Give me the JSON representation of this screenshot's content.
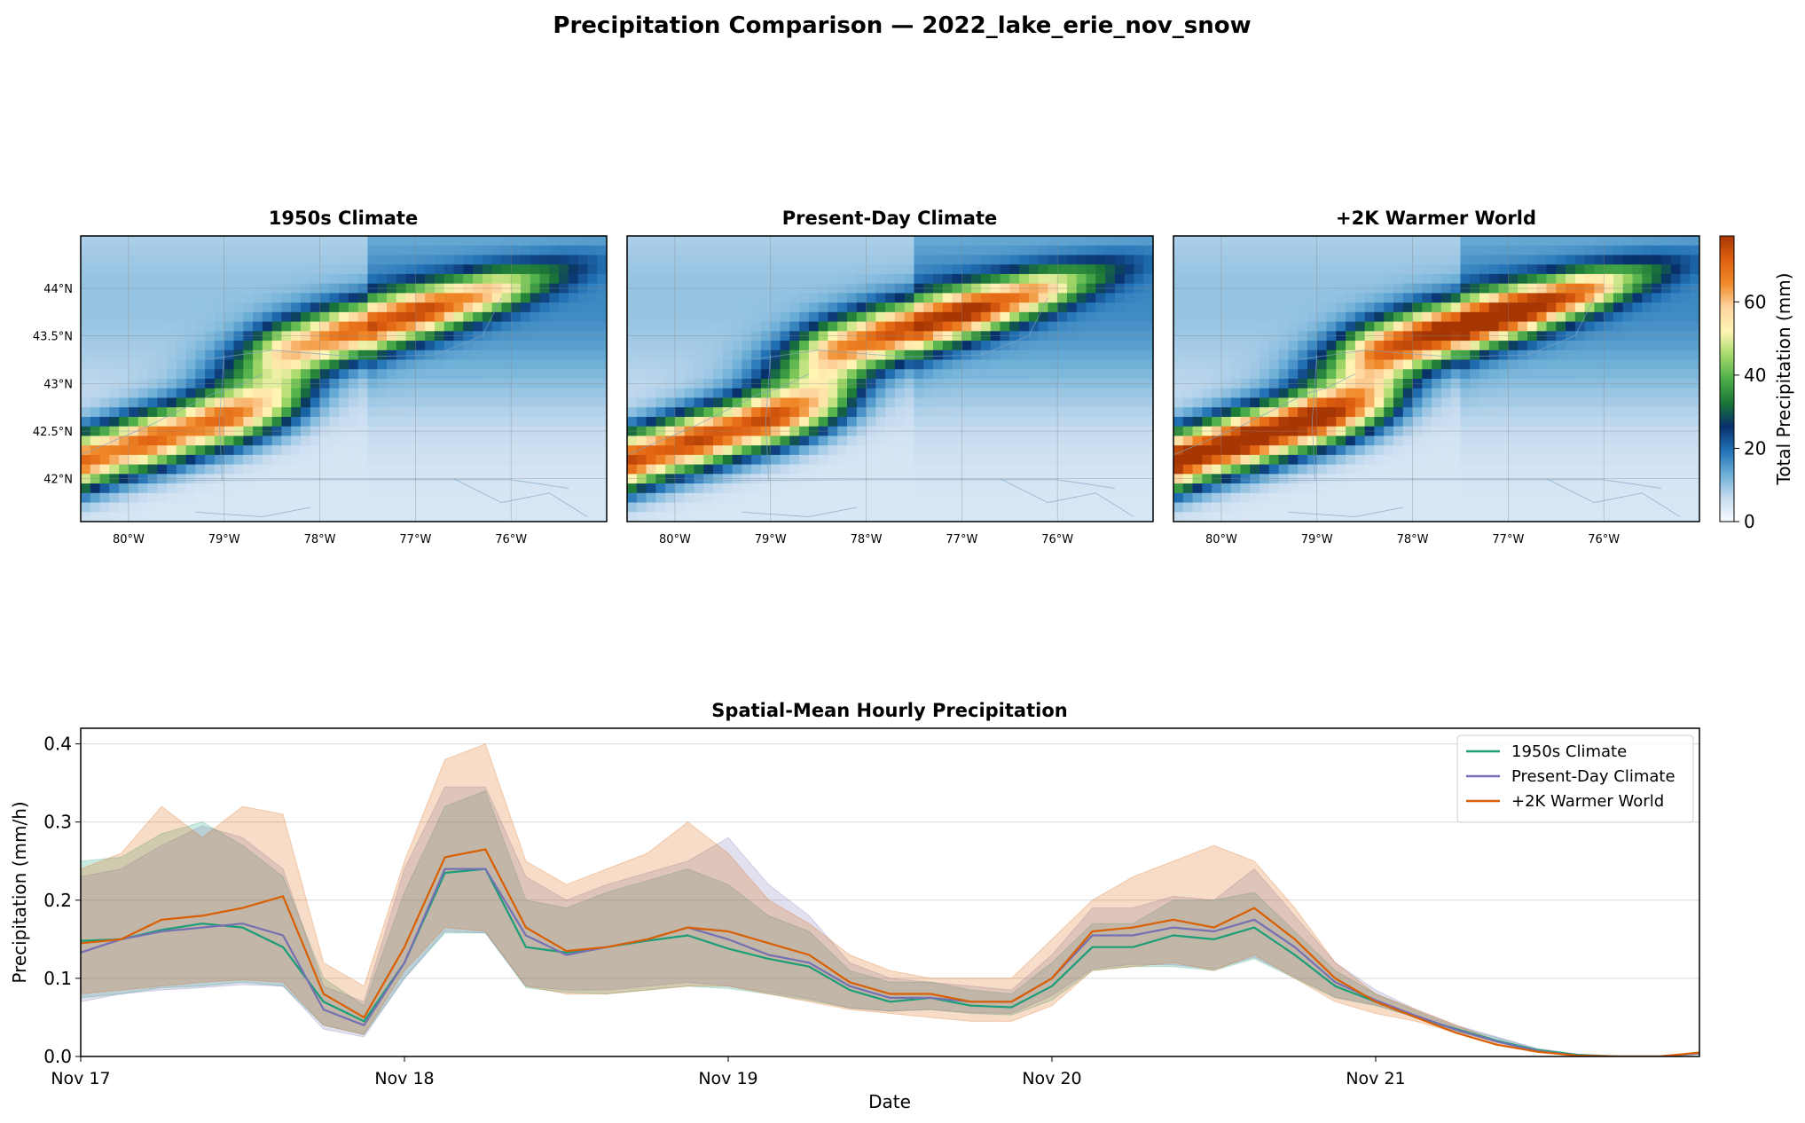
{
  "figure": {
    "title": "Precipitation Comparison — 2022_lake_erie_nov_snow"
  },
  "maps": {
    "panels": [
      {
        "title": "1950s Climate",
        "intensity": 1.0
      },
      {
        "title": "Present-Day Climate",
        "intensity": 1.08
      },
      {
        "title": "+2K Warmer World",
        "intensity": 1.22
      }
    ],
    "lon_ticks": [
      "80°W",
      "79°W",
      "78°W",
      "77°W",
      "76°W"
    ],
    "lat_ticks": [
      "44°N",
      "43.5°N",
      "43°N",
      "42.5°N",
      "42°N"
    ],
    "extent": {
      "lon_min": -80.5,
      "lon_max": -75.0,
      "lat_min": 41.55,
      "lat_max": 44.55
    },
    "colorbar": {
      "label": "Total Precipitation (mm)",
      "ticks": [
        "0",
        "20",
        "40",
        "60"
      ],
      "vmin": 0,
      "vmax": 78,
      "stops": [
        "#f7fbff",
        "#c6dbef",
        "#6baed6",
        "#2171b5",
        "#08306b",
        "#1b7837",
        "#4daf4a",
        "#a6d96a",
        "#fff5b4",
        "#fdd49e",
        "#f08a2a",
        "#e06010",
        "#a63603"
      ]
    }
  },
  "chart_data": {
    "type": "line",
    "title": "Spatial-Mean Hourly Precipitation",
    "xlabel": "Date",
    "ylabel": "Precipitation (mm/h)",
    "x_tick_labels": [
      "Nov 17",
      "Nov 18",
      "Nov 19",
      "Nov 20",
      "Nov 21"
    ],
    "y_tick_labels": [
      "0.0",
      "0.1",
      "0.2",
      "0.3",
      "0.4"
    ],
    "xlim": [
      0,
      120
    ],
    "ylim": [
      0,
      0.42
    ],
    "legend_position": "top-right",
    "x_hours": [
      0,
      3,
      6,
      9,
      12,
      15,
      18,
      21,
      24,
      27,
      30,
      33,
      36,
      39,
      42,
      45,
      48,
      51,
      54,
      57,
      60,
      63,
      66,
      69,
      72,
      75,
      78,
      81,
      84,
      87,
      90,
      93,
      96,
      99,
      102,
      105,
      108,
      111,
      114,
      117,
      120
    ],
    "series": [
      {
        "name": "1950s Climate",
        "color": "#1b9e77",
        "values": [
          0.148,
          0.15,
          0.162,
          0.17,
          0.165,
          0.14,
          0.07,
          0.045,
          0.12,
          0.235,
          0.24,
          0.14,
          0.133,
          0.14,
          0.148,
          0.155,
          0.138,
          0.125,
          0.115,
          0.085,
          0.07,
          0.075,
          0.065,
          0.063,
          0.09,
          0.14,
          0.14,
          0.155,
          0.15,
          0.165,
          0.13,
          0.09,
          0.07,
          0.05,
          0.035,
          0.02,
          0.008,
          0.002,
          0.0,
          0.0,
          0.004
        ],
        "lower": [
          0.075,
          0.08,
          0.088,
          0.09,
          0.095,
          0.09,
          0.04,
          0.028,
          0.1,
          0.158,
          0.158,
          0.088,
          0.082,
          0.08,
          0.085,
          0.09,
          0.087,
          0.08,
          0.072,
          0.062,
          0.058,
          0.06,
          0.055,
          0.053,
          0.072,
          0.11,
          0.115,
          0.115,
          0.11,
          0.125,
          0.1,
          0.075,
          0.065,
          0.05,
          0.032,
          0.018,
          0.006,
          0.001,
          0.0,
          0.0,
          0.003
        ],
        "upper": [
          0.25,
          0.255,
          0.285,
          0.3,
          0.27,
          0.23,
          0.1,
          0.065,
          0.21,
          0.32,
          0.34,
          0.2,
          0.19,
          0.21,
          0.225,
          0.24,
          0.22,
          0.18,
          0.16,
          0.11,
          0.095,
          0.095,
          0.085,
          0.08,
          0.12,
          0.17,
          0.17,
          0.2,
          0.2,
          0.21,
          0.16,
          0.11,
          0.08,
          0.058,
          0.038,
          0.024,
          0.01,
          0.003,
          0.0,
          0.0,
          0.005
        ]
      },
      {
        "name": "Present-Day Climate",
        "color": "#7570b3",
        "values": [
          0.133,
          0.15,
          0.16,
          0.165,
          0.17,
          0.155,
          0.06,
          0.04,
          0.12,
          0.24,
          0.24,
          0.155,
          0.13,
          0.14,
          0.15,
          0.165,
          0.15,
          0.13,
          0.12,
          0.09,
          0.075,
          0.075,
          0.07,
          0.07,
          0.1,
          0.155,
          0.155,
          0.165,
          0.16,
          0.175,
          0.14,
          0.095,
          0.072,
          0.052,
          0.034,
          0.019,
          0.007,
          0.001,
          0.0,
          0.0,
          0.004
        ],
        "lower": [
          0.07,
          0.08,
          0.085,
          0.088,
          0.092,
          0.09,
          0.035,
          0.025,
          0.1,
          0.16,
          0.158,
          0.09,
          0.085,
          0.085,
          0.09,
          0.095,
          0.09,
          0.082,
          0.074,
          0.062,
          0.058,
          0.06,
          0.056,
          0.055,
          0.078,
          0.112,
          0.118,
          0.117,
          0.112,
          0.127,
          0.102,
          0.076,
          0.066,
          0.05,
          0.032,
          0.018,
          0.006,
          0.001,
          0.0,
          0.0,
          0.003
        ],
        "upper": [
          0.23,
          0.24,
          0.27,
          0.295,
          0.28,
          0.24,
          0.09,
          0.07,
          0.24,
          0.345,
          0.345,
          0.23,
          0.2,
          0.22,
          0.235,
          0.25,
          0.28,
          0.22,
          0.18,
          0.12,
          0.1,
          0.095,
          0.09,
          0.085,
          0.13,
          0.19,
          0.19,
          0.205,
          0.2,
          0.24,
          0.18,
          0.12,
          0.085,
          0.06,
          0.04,
          0.025,
          0.01,
          0.003,
          0.0,
          0.0,
          0.005
        ]
      },
      {
        "name": "+2K Warmer World",
        "color": "#d95f02",
        "values": [
          0.145,
          0.15,
          0.175,
          0.18,
          0.19,
          0.205,
          0.08,
          0.05,
          0.14,
          0.255,
          0.265,
          0.165,
          0.135,
          0.14,
          0.15,
          0.165,
          0.16,
          0.145,
          0.13,
          0.095,
          0.08,
          0.08,
          0.07,
          0.07,
          0.1,
          0.16,
          0.165,
          0.175,
          0.165,
          0.19,
          0.15,
          0.1,
          0.07,
          0.05,
          0.03,
          0.015,
          0.006,
          0.001,
          0.0,
          0.0,
          0.005
        ],
        "lower": [
          0.08,
          0.085,
          0.09,
          0.095,
          0.098,
          0.095,
          0.04,
          0.028,
          0.11,
          0.165,
          0.16,
          0.09,
          0.08,
          0.08,
          0.085,
          0.09,
          0.09,
          0.08,
          0.07,
          0.06,
          0.055,
          0.05,
          0.045,
          0.045,
          0.065,
          0.11,
          0.115,
          0.12,
          0.11,
          0.13,
          0.1,
          0.07,
          0.055,
          0.045,
          0.03,
          0.015,
          0.005,
          0.001,
          0.0,
          0.0,
          0.004
        ],
        "upper": [
          0.24,
          0.26,
          0.32,
          0.28,
          0.32,
          0.31,
          0.12,
          0.09,
          0.25,
          0.38,
          0.4,
          0.25,
          0.22,
          0.24,
          0.26,
          0.3,
          0.26,
          0.2,
          0.17,
          0.13,
          0.11,
          0.1,
          0.1,
          0.1,
          0.15,
          0.2,
          0.23,
          0.25,
          0.27,
          0.25,
          0.19,
          0.12,
          0.08,
          0.06,
          0.04,
          0.02,
          0.009,
          0.002,
          0.0,
          0.0,
          0.006
        ]
      }
    ]
  }
}
